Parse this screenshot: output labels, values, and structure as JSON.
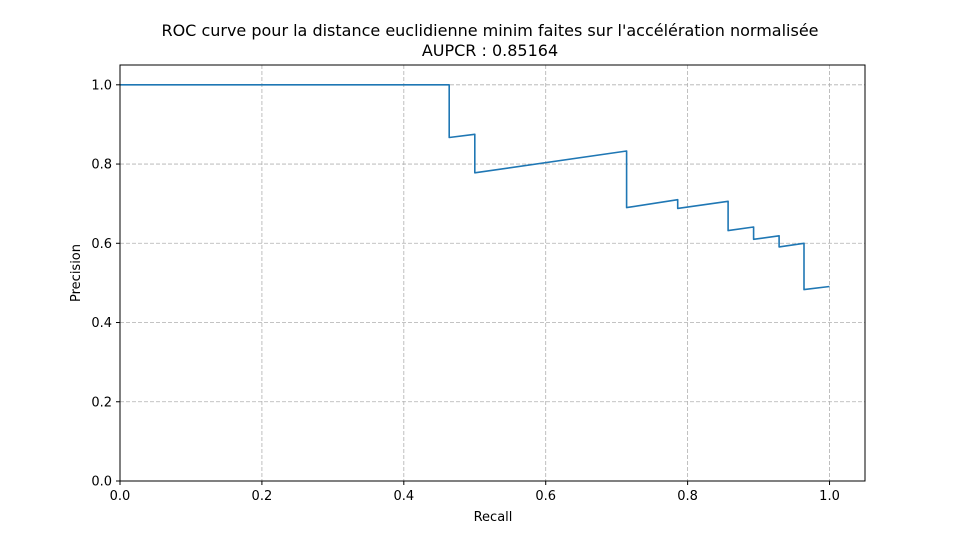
{
  "chart_data": {
    "type": "line",
    "title": "ROC curve pour la distance euclidienne minim faites sur l'accélération normalisée",
    "subtitle": "AUPCR : 0.85164",
    "xlabel": "Recall",
    "ylabel": "Precision",
    "xlim": [
      0.0,
      1.05
    ],
    "ylim": [
      0.0,
      1.05
    ],
    "grid": true,
    "grid_style": "dashed",
    "x_ticks": [
      0.0,
      0.2,
      0.4,
      0.6,
      0.8,
      1.0
    ],
    "x_tick_labels": [
      "0.0",
      "0.2",
      "0.4",
      "0.6",
      "0.8",
      "1.0"
    ],
    "y_ticks": [
      0.0,
      0.2,
      0.4,
      0.6,
      0.8,
      1.0
    ],
    "y_tick_labels": [
      "0.0",
      "0.2",
      "0.4",
      "0.6",
      "0.8",
      "1.0"
    ],
    "series": [
      {
        "color": "#1f77b4",
        "x": [
          0.0,
          0.464,
          0.464,
          0.5,
          0.5,
          0.714,
          0.714,
          0.786,
          0.786,
          0.857,
          0.857,
          0.893,
          0.893,
          0.929,
          0.929,
          0.964,
          0.964,
          1.0
        ],
        "y": [
          1.0,
          1.0,
          0.867,
          0.875,
          0.778,
          0.833,
          0.69,
          0.71,
          0.688,
          0.706,
          0.632,
          0.641,
          0.61,
          0.619,
          0.591,
          0.6,
          0.483,
          0.491
        ]
      }
    ]
  }
}
